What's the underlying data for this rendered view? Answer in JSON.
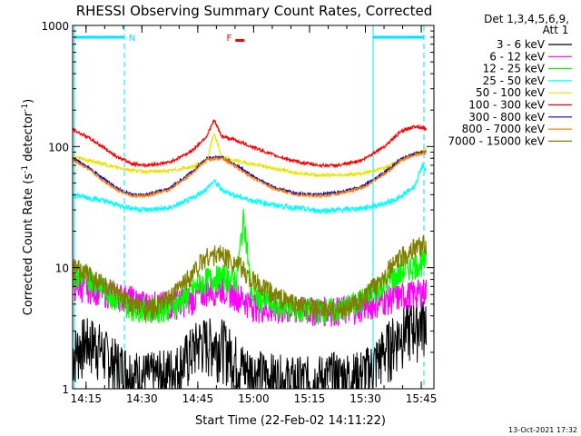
{
  "chart_data": {
    "type": "line",
    "title": "RHESSI Observing Summary Count Rates, Corrected",
    "xlabel": "Start Time (22-Feb-02 14:11:22)",
    "ylabel_main": "Corrected Count Rate (s",
    "ylabel_sup1": "-1",
    "ylabel_mid": " detector",
    "ylabel_sup2": "-1",
    "ylabel_end": ")",
    "y_scale": "log",
    "ylim": [
      1,
      1000
    ],
    "xlim_minutes": [
      0,
      97
    ],
    "x_ticks": [
      {
        "m": 3.6,
        "label": "14:15"
      },
      {
        "m": 18.6,
        "label": "14:30"
      },
      {
        "m": 33.6,
        "label": "14:45"
      },
      {
        "m": 48.6,
        "label": "15:00"
      },
      {
        "m": 63.6,
        "label": "15:15"
      },
      {
        "m": 78.6,
        "label": "15:30"
      },
      {
        "m": 93.6,
        "label": "15:45"
      }
    ],
    "y_ticks": [
      {
        "v": 1,
        "label": "1"
      },
      {
        "v": 10,
        "label": "10"
      },
      {
        "v": 100,
        "label": "100"
      },
      {
        "v": 1000,
        "label": "1000"
      }
    ],
    "legend_header": [
      "Det 1,3,4,5,6,9,",
      "Att 1"
    ],
    "legend_position": "right",
    "timestamp": "13-Oct-2021 17:32",
    "markers": [
      {
        "text": "N",
        "color": "#00e5ff",
        "x_m": 16
      },
      {
        "text": "F",
        "color": "#ff0000",
        "x_m": 42
      }
    ],
    "series": [
      {
        "name": "3 - 6 keV",
        "color": "#000000",
        "x": [
          0,
          3,
          6,
          10,
          14,
          18,
          22,
          28,
          34,
          40,
          46,
          52,
          58,
          64,
          70,
          76,
          80,
          84,
          88,
          92,
          95
        ],
        "y": [
          2,
          2.5,
          2.5,
          1.8,
          1.5,
          1.3,
          1.3,
          1.5,
          2.5,
          2.5,
          1.5,
          1.3,
          1.2,
          1.2,
          1.3,
          1.3,
          1.5,
          2.2,
          3,
          3.5,
          4
        ]
      },
      {
        "name": "6 - 12 keV",
        "color": "#ff00ff",
        "x": [
          0,
          4,
          8,
          12,
          16,
          20,
          26,
          32,
          36,
          40,
          44,
          48,
          54,
          60,
          66,
          72,
          78,
          84,
          90,
          95
        ],
        "y": [
          7,
          7,
          6.5,
          6,
          5.5,
          5,
          5,
          5.5,
          6.5,
          6.8,
          6,
          5,
          4.5,
          4.5,
          4.5,
          4.5,
          4.8,
          5.5,
          6,
          6.5
        ]
      },
      {
        "name": "12 - 25 keV",
        "color": "#00ff00",
        "x": [
          0,
          4,
          8,
          12,
          16,
          22,
          28,
          32,
          36,
          40,
          44,
          46,
          48,
          54,
          60,
          66,
          72,
          78,
          84,
          90,
          95
        ],
        "y": [
          8.5,
          8.5,
          7,
          5.5,
          4.8,
          4.5,
          5,
          6.5,
          8,
          8.5,
          8,
          27,
          6,
          5,
          4.5,
          4.5,
          4.5,
          5.5,
          7.5,
          10,
          11.5
        ]
      },
      {
        "name": "25 - 50 keV",
        "color": "#00ffff",
        "x": [
          0,
          4,
          8,
          12,
          16,
          20,
          26,
          32,
          36,
          38,
          40,
          44,
          48,
          54,
          60,
          66,
          72,
          78,
          84,
          88,
          92,
          94,
          95
        ],
        "y": [
          40,
          38,
          36,
          33,
          31,
          30,
          31,
          37,
          45,
          52,
          44,
          39,
          36,
          33,
          31,
          29.5,
          30,
          31,
          34,
          38,
          48,
          70,
          62
        ]
      },
      {
        "name": "50 - 100 keV",
        "color": "#e6e600",
        "x": [
          0,
          4,
          8,
          12,
          16,
          20,
          26,
          32,
          36,
          38,
          40,
          44,
          48,
          54,
          60,
          66,
          72,
          78,
          84,
          88,
          92,
          95
        ],
        "y": [
          82,
          77,
          72,
          67,
          64,
          62,
          63,
          68,
          76,
          130,
          82,
          76,
          72,
          66,
          61,
          58,
          58,
          60,
          67,
          78,
          88,
          95
        ]
      },
      {
        "name": "100 - 300 keV",
        "color": "#ff0000",
        "x": [
          0,
          4,
          8,
          12,
          16,
          20,
          26,
          32,
          36,
          38,
          40,
          44,
          48,
          54,
          60,
          66,
          72,
          78,
          84,
          88,
          92,
          95
        ],
        "y": [
          138,
          120,
          100,
          82,
          72,
          70,
          74,
          92,
          122,
          165,
          122,
          112,
          100,
          85,
          75,
          70,
          70,
          78,
          102,
          132,
          148,
          140
        ]
      },
      {
        "name": "300 - 800 keV",
        "color": "#0000cc",
        "x": [
          0,
          4,
          8,
          12,
          16,
          20,
          26,
          32,
          36,
          40,
          44,
          48,
          54,
          60,
          66,
          72,
          78,
          84,
          88,
          92,
          95
        ],
        "y": [
          80,
          68,
          55,
          45,
          40,
          40,
          45,
          62,
          80,
          82,
          70,
          58,
          46,
          41,
          40,
          42,
          47,
          62,
          78,
          88,
          90
        ]
      },
      {
        "name": "800 - 7000 keV",
        "color": "#ff8000",
        "x": [
          0,
          4,
          8,
          12,
          16,
          20,
          26,
          32,
          36,
          40,
          44,
          48,
          54,
          60,
          66,
          72,
          78,
          84,
          88,
          92,
          95
        ],
        "y": [
          78,
          66,
          53,
          44,
          39,
          39,
          44,
          60,
          78,
          80,
          68,
          56,
          45,
          40,
          39,
          41,
          46,
          60,
          76,
          86,
          88
        ]
      },
      {
        "name": "7000 - 15000 keV",
        "color": "#808000",
        "x": [
          0,
          4,
          8,
          12,
          16,
          20,
          26,
          32,
          36,
          40,
          44,
          48,
          54,
          60,
          66,
          72,
          78,
          84,
          88,
          92,
          95
        ],
        "y": [
          10,
          9,
          7.5,
          6,
          5,
          4.5,
          5.5,
          9,
          12.5,
          13,
          11,
          8,
          6,
          5,
          4.5,
          4.5,
          5.5,
          9,
          12,
          15,
          15.5
        ]
      }
    ]
  }
}
